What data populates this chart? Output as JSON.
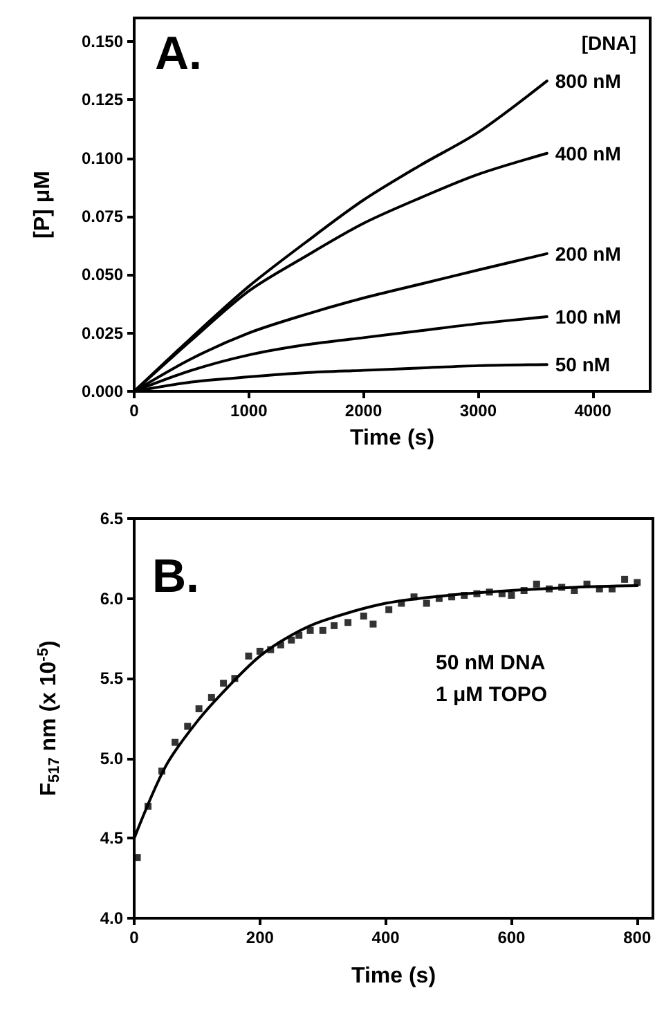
{
  "chart_data": [
    {
      "type": "line",
      "xlabel": "Time (s)",
      "ylabel": "[P] μM",
      "legend_title": "[DNA]",
      "annotations": [
        "A."
      ],
      "xlim": [
        0,
        4500
      ],
      "xticks": [
        0,
        1000,
        2000,
        3000,
        4000
      ],
      "ylim": [
        0,
        0.16
      ],
      "yticks": [
        {
          "value": 0,
          "label": "0.000"
        },
        {
          "value": 0.025,
          "label": "0.025"
        },
        {
          "value": 0.05,
          "label": "0.050"
        },
        {
          "value": 0.075,
          "label": "0.075"
        },
        {
          "value": 0.1,
          "label": "0.100"
        },
        {
          "value": 0.125,
          "label": "0.125"
        },
        {
          "value": 0.15,
          "label": "0.150"
        }
      ],
      "grid": false,
      "legend": false,
      "marker": "none",
      "line_style": "solid",
      "x": [
        0,
        500,
        1000,
        1500,
        2000,
        2500,
        3000,
        3600
      ],
      "series": [
        {
          "name": "800 nM",
          "color": "#000000",
          "values": [
            0,
            0.023,
            0.045,
            0.064,
            0.082,
            0.097,
            0.111,
            0.133
          ]
        },
        {
          "name": "400 nM",
          "color": "#000000",
          "values": [
            0,
            0.022,
            0.043,
            0.058,
            0.072,
            0.083,
            0.093,
            0.102
          ]
        },
        {
          "name": "200 nM",
          "color": "#000000",
          "values": [
            0,
            0.014,
            0.025,
            0.033,
            0.04,
            0.046,
            0.052,
            0.059
          ]
        },
        {
          "name": "100 nM",
          "color": "#000000",
          "values": [
            0,
            0.009,
            0.0156,
            0.02,
            0.023,
            0.026,
            0.029,
            0.032
          ]
        },
        {
          "name": "50 nM",
          "color": "#000000",
          "values": [
            0,
            0.004,
            0.0062,
            0.008,
            0.009,
            0.01,
            0.011,
            0.0115
          ]
        }
      ]
    },
    {
      "type": "scatter",
      "xlabel": "Time (s)",
      "ylabel": "F$_{517}$ nm (x 10$^{-5}$)",
      "annotations": [
        "B.",
        "50 nM DNA",
        "1 μM TOPO"
      ],
      "xlim": [
        0,
        825
      ],
      "xticks": [
        0,
        200,
        400,
        600,
        800
      ],
      "ylim": [
        4.0,
        6.5
      ],
      "yticks": [
        {
          "value": 4,
          "label": "4.0"
        },
        {
          "value": 4.5,
          "label": "4.5"
        },
        {
          "value": 5,
          "label": "5.0"
        },
        {
          "value": 5.5,
          "label": "5.5"
        },
        {
          "value": 6,
          "label": "6.0"
        },
        {
          "value": 6.5,
          "label": "6.5"
        }
      ],
      "grid": false,
      "legend": false,
      "series": [
        {
          "color": "#000000",
          "marker": "square",
          "x": [
            5,
            22,
            44,
            65,
            85,
            103,
            123,
            142,
            160,
            182,
            200,
            217,
            233,
            250,
            262,
            280,
            300,
            318,
            340,
            365,
            380,
            405,
            425,
            445,
            465,
            485,
            505,
            525,
            545,
            565,
            585,
            600,
            620,
            640,
            660,
            680,
            700,
            720,
            740,
            760,
            780,
            800
          ],
          "values": [
            4.38,
            4.7,
            4.92,
            5.1,
            5.2,
            5.31,
            5.38,
            5.47,
            5.5,
            5.64,
            5.67,
            5.68,
            5.71,
            5.74,
            5.77,
            5.8,
            5.8,
            5.83,
            5.85,
            5.89,
            5.84,
            5.93,
            5.97,
            6.01,
            5.97,
            6.0,
            6.01,
            6.02,
            6.03,
            6.04,
            6.03,
            6.02,
            6.05,
            6.09,
            6.06,
            6.07,
            6.05,
            6.09,
            6.06,
            6.06,
            6.12,
            6.1
          ]
        },
        {
          "type": "line",
          "color": "#000000",
          "marker": "none",
          "x": [
            0,
            50,
            100,
            150,
            200,
            250,
            300,
            400,
            500,
            600,
            700,
            800
          ],
          "values": [
            4.5,
            4.95,
            5.23,
            5.45,
            5.64,
            5.77,
            5.86,
            5.97,
            6.02,
            6.05,
            6.07,
            6.08
          ]
        }
      ]
    }
  ]
}
